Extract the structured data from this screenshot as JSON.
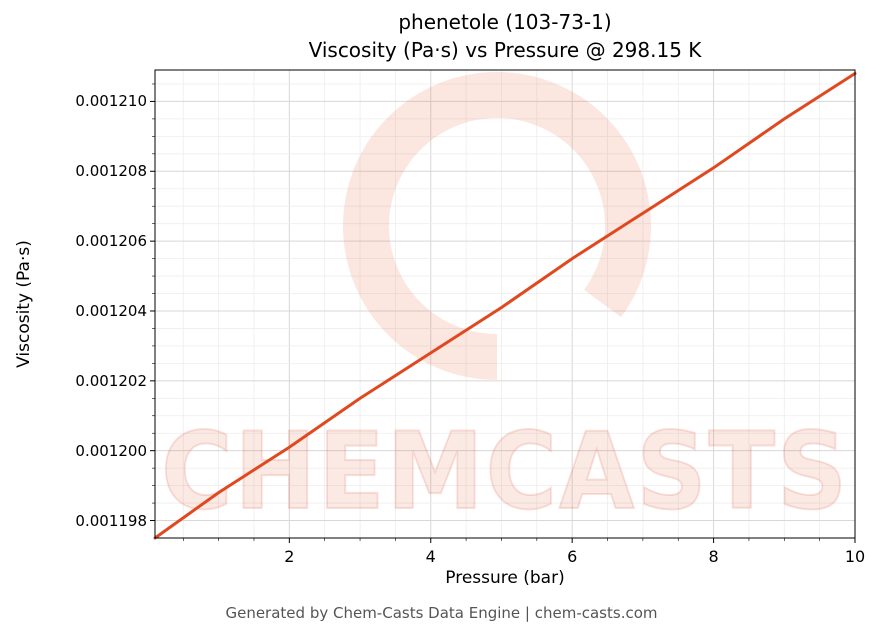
{
  "title": {
    "line1": "phenetole (103-73-1)",
    "line2": "Viscosity (Pa·s) vs Pressure @ 298.15 K"
  },
  "footer": "Generated by Chem-Casts Data Engine | chem-casts.com",
  "watermark": {
    "text": "CHEMCASTS",
    "logo": "chemcasts-circle-logo",
    "color": "#e5633f"
  },
  "chart_data": {
    "type": "line",
    "title": "phenetole (103-73-1) — Viscosity (Pa·s) vs Pressure @ 298.15 K",
    "xlabel": "Pressure (bar)",
    "ylabel": "Viscosity (Pa·s)",
    "xlim": [
      0.1,
      10
    ],
    "ylim": [
      0.0011975,
      0.0012109
    ],
    "x_ticks": [
      2,
      4,
      6,
      8,
      10
    ],
    "y_ticks": [
      0.001198,
      0.0012,
      0.001202,
      0.001204,
      0.001206,
      0.001208,
      0.00121
    ],
    "y_tick_labels": [
      "0.001198",
      "0.001200",
      "0.001202",
      "0.001204",
      "0.001206",
      "0.001208",
      "0.001210"
    ],
    "grid": true,
    "legend": "none",
    "line_color": "#e0491f",
    "series": [
      {
        "name": "viscosity_vs_pressure",
        "x": [
          0.1,
          1,
          2,
          3,
          4,
          5,
          6,
          7,
          8,
          9,
          10
        ],
        "y": [
          0.0011975,
          0.0011988,
          0.0012001,
          0.0012015,
          0.0012028,
          0.0012041,
          0.0012055,
          0.0012068,
          0.0012081,
          0.0012095,
          0.0012108
        ]
      }
    ]
  }
}
